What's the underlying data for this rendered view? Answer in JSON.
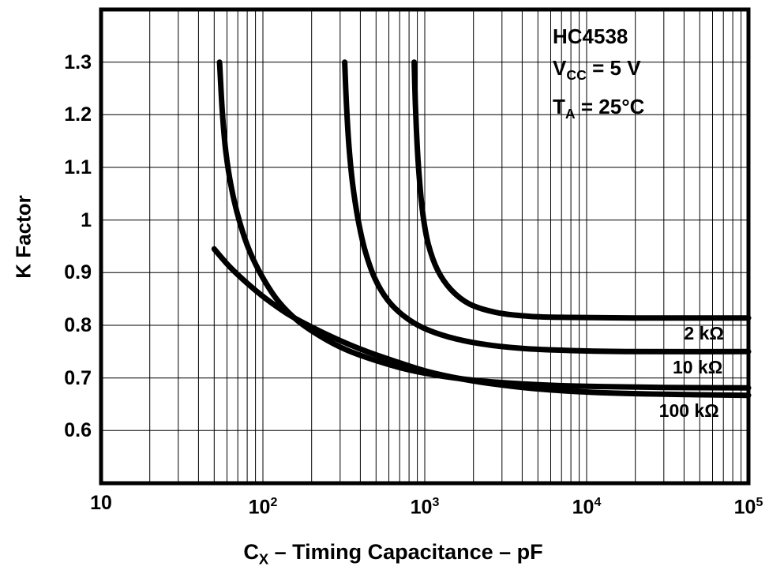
{
  "chart_data": {
    "type": "line",
    "x_scale": "log",
    "xlim": [
      10,
      100000
    ],
    "ylim": [
      0.5,
      1.4
    ],
    "grid": true,
    "legend_position": "labels-right-inside",
    "ylabel": "K Factor",
    "xlabel": "CX – Timing Capacitance – pF",
    "xlabel_parts": {
      "pre": "C",
      "sub": "X",
      "post": " – Timing Capacitance – pF"
    },
    "conditions_box": {
      "line1": "HC4538",
      "line2": {
        "pre": "V",
        "sub": "CC",
        "post": " = 5 V"
      },
      "line3": {
        "pre": "T",
        "sub": "A",
        "post": " = 25°C"
      }
    },
    "colors": {
      "curve": "#000000",
      "grid": "#000000",
      "frame": "#000000",
      "background": "#ffffff"
    },
    "y_tick_labels": [
      "1.3",
      "1.2",
      "1.1",
      "1",
      "0.9",
      "0.8",
      "0.7",
      "0.6"
    ],
    "y_tick_values": [
      1.3,
      1.2,
      1.1,
      1,
      0.9,
      0.8,
      0.7,
      0.6
    ],
    "x_ticks": [
      {
        "base": "10",
        "exp": ""
      },
      {
        "base": "10",
        "exp": "2"
      },
      {
        "base": "10",
        "exp": "3"
      },
      {
        "base": "10",
        "exp": "4"
      },
      {
        "base": "10",
        "exp": "5"
      }
    ],
    "x_tick_values": [
      10,
      100,
      1000,
      10000,
      100000
    ],
    "series": [
      {
        "name": "2 kΩ",
        "points": [
          [
            860,
            1.3
          ],
          [
            875,
            1.22
          ],
          [
            895,
            1.15
          ],
          [
            925,
            1.08
          ],
          [
            975,
            1.01
          ],
          [
            1050,
            0.955
          ],
          [
            1200,
            0.905
          ],
          [
            1450,
            0.868
          ],
          [
            1900,
            0.84
          ],
          [
            2800,
            0.824
          ],
          [
            4500,
            0.817
          ],
          [
            8000,
            0.815
          ],
          [
            20000,
            0.814
          ],
          [
            100000,
            0.814
          ]
        ]
      },
      {
        "name": "10 kΩ",
        "points": [
          [
            320,
            1.3
          ],
          [
            328,
            1.22
          ],
          [
            340,
            1.14
          ],
          [
            358,
            1.07
          ],
          [
            385,
            1.005
          ],
          [
            425,
            0.945
          ],
          [
            490,
            0.89
          ],
          [
            590,
            0.848
          ],
          [
            740,
            0.818
          ],
          [
            980,
            0.795
          ],
          [
            1400,
            0.778
          ],
          [
            2200,
            0.765
          ],
          [
            4000,
            0.756
          ],
          [
            8000,
            0.752
          ],
          [
            20000,
            0.75
          ],
          [
            100000,
            0.75
          ]
        ]
      },
      {
        "name": "100 kΩ",
        "points": [
          [
            54,
            1.3
          ],
          [
            56,
            1.21
          ],
          [
            59,
            1.13
          ],
          [
            64,
            1.06
          ],
          [
            72,
            0.995
          ],
          [
            83,
            0.94
          ],
          [
            100,
            0.89
          ],
          [
            125,
            0.845
          ],
          [
            165,
            0.808
          ],
          [
            230,
            0.778
          ],
          [
            330,
            0.753
          ],
          [
            500,
            0.733
          ],
          [
            780,
            0.716
          ],
          [
            1300,
            0.703
          ],
          [
            2300,
            0.694
          ],
          [
            4500,
            0.688
          ],
          [
            10000,
            0.684
          ],
          [
            30000,
            0.682
          ],
          [
            100000,
            0.681
          ]
        ]
      },
      {
        "name": "",
        "points": [
          [
            50,
            0.945
          ],
          [
            62,
            0.912
          ],
          [
            80,
            0.88
          ],
          [
            105,
            0.85
          ],
          [
            145,
            0.82
          ],
          [
            205,
            0.795
          ],
          [
            295,
            0.772
          ],
          [
            440,
            0.75
          ],
          [
            680,
            0.73
          ],
          [
            1050,
            0.712
          ],
          [
            1700,
            0.698
          ],
          [
            2900,
            0.687
          ],
          [
            5500,
            0.678
          ],
          [
            12000,
            0.672
          ],
          [
            30000,
            0.669
          ],
          [
            100000,
            0.667
          ]
        ]
      }
    ],
    "series_labels": [
      {
        "text": "2 kΩ",
        "x": 40000,
        "k": 0.783
      },
      {
        "text": "10 kΩ",
        "x": 34000,
        "k": 0.719
      },
      {
        "text": "100 kΩ",
        "x": 28000,
        "k": 0.636
      }
    ]
  }
}
